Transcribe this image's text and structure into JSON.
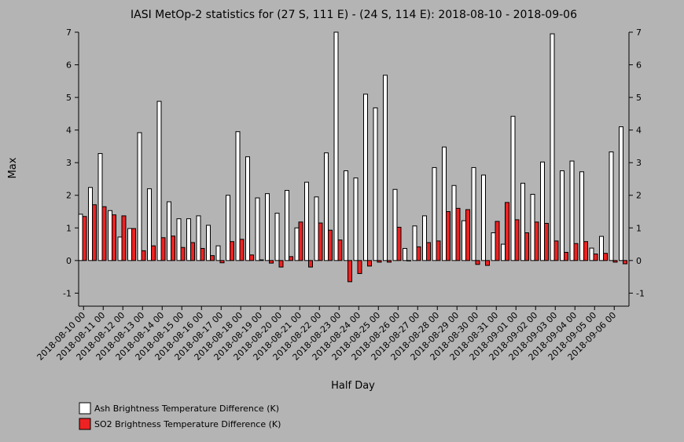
{
  "chart_data": {
    "type": "bar",
    "title": "IASI MetOp-2 statistics for (27 S, 111 E) - (24 S, 114 E): 2018-08-10 - 2018-09-06",
    "xlabel": "Half Day",
    "ylabel": "Max",
    "ylim": [
      -1.4,
      7
    ],
    "yticks": [
      -1,
      0,
      1,
      2,
      3,
      4,
      5,
      6,
      7
    ],
    "xtick_labels": [
      "2018-08-10 00",
      "2018-08-11 00",
      "2018-08-12 00",
      "2018-08-13 00",
      "2018-08-14 00",
      "2018-08-15 00",
      "2018-08-16 00",
      "2018-08-17 00",
      "2018-08-18 00",
      "2018-08-19 00",
      "2018-08-20 00",
      "2018-08-21 00",
      "2018-08-22 00",
      "2018-08-23 00",
      "2018-08-24 00",
      "2018-08-25 00",
      "2018-08-26 00",
      "2018-08-27 00",
      "2018-08-28 00",
      "2018-08-29 00",
      "2018-08-30 00",
      "2018-08-31 00",
      "2018-09-01 00",
      "2018-09-02 00",
      "2018-09-03 00",
      "2018-09-04 00",
      "2018-09-05 00",
      "2018-09-06 00"
    ],
    "series": [
      {
        "name": "Ash Brightness Temperature Difference (K)",
        "color": "#ffffff",
        "values": [
          1.42,
          2.24,
          3.28,
          1.53,
          0.72,
          0.98,
          3.92,
          2.2,
          4.88,
          1.8,
          1.28,
          1.28,
          1.37,
          1.08,
          0.45,
          2.0,
          3.95,
          3.18,
          1.92,
          2.05,
          1.45,
          2.15,
          1.0,
          2.4,
          1.95,
          3.3,
          7.0,
          2.75,
          2.53,
          5.1,
          4.68,
          5.68,
          2.18,
          0.37,
          1.06,
          1.37,
          2.85,
          3.48,
          2.3,
          1.22,
          2.85,
          2.62,
          0.85,
          0.5,
          4.42,
          2.37,
          2.03,
          3.02,
          6.95,
          2.75,
          3.05,
          2.72,
          0.38,
          0.74,
          3.33,
          4.1
        ]
      },
      {
        "name": "SO2 Brightness Temperature Difference (K)",
        "color": "#ee2222",
        "values": [
          1.35,
          1.71,
          1.65,
          1.4,
          1.37,
          0.98,
          0.3,
          0.45,
          0.7,
          0.75,
          0.4,
          0.55,
          0.37,
          0.15,
          -0.07,
          0.58,
          0.65,
          0.17,
          0.02,
          -0.08,
          -0.2,
          0.12,
          1.18,
          -0.2,
          1.15,
          0.93,
          0.63,
          -0.65,
          -0.4,
          -0.17,
          -0.05,
          -0.05,
          1.02,
          0.0,
          0.42,
          0.55,
          0.6,
          1.5,
          1.6,
          1.56,
          -0.12,
          -0.15,
          1.2,
          1.78,
          1.25,
          0.85,
          1.18,
          1.14,
          0.6,
          0.25,
          0.52,
          0.58,
          0.2,
          0.22,
          -0.05,
          -0.1
        ]
      }
    ],
    "grid": false,
    "legend": "bottom-left"
  }
}
